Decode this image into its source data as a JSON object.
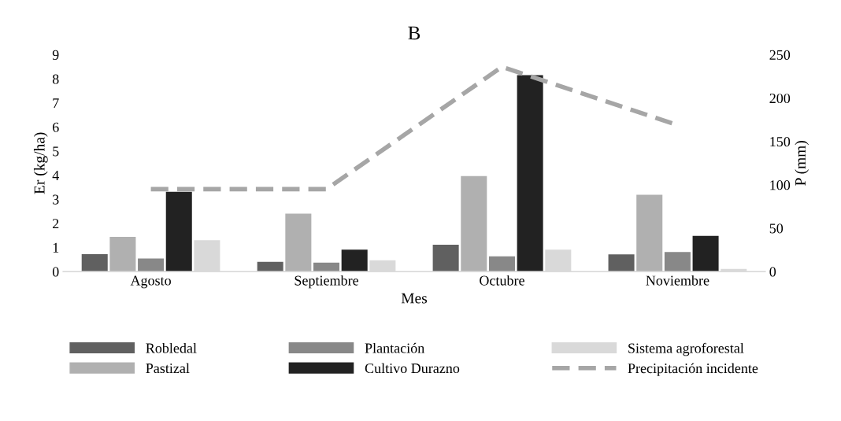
{
  "chart_data": {
    "type": "bar",
    "title": "B",
    "xlabel": "Mes",
    "ylabel": "Er (kg/ha)",
    "y2label": "P (mm)",
    "categories": [
      "Agosto",
      "Septiembre",
      "Octubre",
      "Noviembre"
    ],
    "series": [
      {
        "name": "Robledal",
        "color": "#606060",
        "values": [
          0.72,
          0.4,
          1.11,
          0.71
        ]
      },
      {
        "name": "Pastizal",
        "color": "#b0b0b0",
        "values": [
          1.44,
          2.4,
          3.96,
          3.19
        ]
      },
      {
        "name": "Plantación",
        "color": "#888888",
        "values": [
          0.54,
          0.37,
          0.63,
          0.81
        ]
      },
      {
        "name": "Cultivo Durazno",
        "color": "#222222",
        "values": [
          3.31,
          0.91,
          8.15,
          1.48
        ]
      },
      {
        "name": "Sistema agroforestal",
        "color": "#d9d9d9",
        "values": [
          1.3,
          0.47,
          0.91,
          0.11
        ]
      },
      {
        "name": "Precipitación incidente",
        "color": "#a6a6a6",
        "type": "line",
        "axis": "y2",
        "line_style": "dashed",
        "values": [
          95,
          95,
          236,
          169
        ]
      }
    ],
    "ylim": [
      0,
      9
    ],
    "yticks": [
      0,
      1,
      2,
      3,
      4,
      5,
      6,
      7,
      8,
      9
    ],
    "y2lim": [
      0,
      250
    ],
    "y2ticks": [
      0,
      50,
      100,
      150,
      200,
      250
    ],
    "grid": false,
    "legend": "bottom"
  }
}
